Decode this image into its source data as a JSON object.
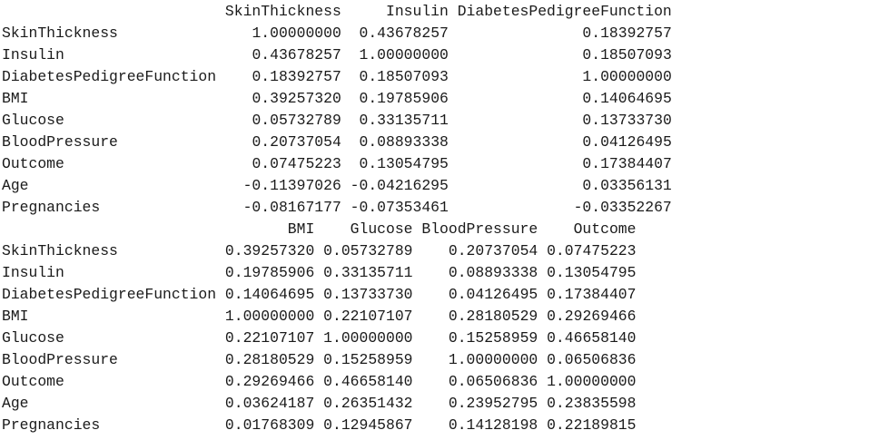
{
  "console": {
    "blocks": [
      {
        "columns": [
          "SkinThickness",
          "Insulin",
          "DiabetesPedigreeFunction"
        ],
        "rows": [
          {
            "label": "SkinThickness",
            "values": [
              "1.00000000",
              "0.43678257",
              "0.18392757"
            ]
          },
          {
            "label": "Insulin",
            "values": [
              "0.43678257",
              "1.00000000",
              "0.18507093"
            ]
          },
          {
            "label": "DiabetesPedigreeFunction",
            "values": [
              "0.18392757",
              "0.18507093",
              "1.00000000"
            ]
          },
          {
            "label": "BMI",
            "values": [
              "0.39257320",
              "0.19785906",
              "0.14064695"
            ]
          },
          {
            "label": "Glucose",
            "values": [
              "0.05732789",
              "0.33135711",
              "0.13733730"
            ]
          },
          {
            "label": "BloodPressure",
            "values": [
              "0.20737054",
              "0.08893338",
              "0.04126495"
            ]
          },
          {
            "label": "Outcome",
            "values": [
              "0.07475223",
              "0.13054795",
              "0.17384407"
            ]
          },
          {
            "label": "Age",
            "values": [
              "-0.11397026",
              "-0.04216295",
              "0.03356131"
            ]
          },
          {
            "label": "Pregnancies",
            "values": [
              "-0.08167177",
              "-0.07353461",
              "-0.03352267"
            ]
          }
        ]
      },
      {
        "columns": [
          "BMI",
          "Glucose",
          "BloodPressure",
          "Outcome"
        ],
        "rows": [
          {
            "label": "SkinThickness",
            "values": [
              "0.39257320",
              "0.05732789",
              "0.20737054",
              "0.07475223"
            ]
          },
          {
            "label": "Insulin",
            "values": [
              "0.19785906",
              "0.33135711",
              "0.08893338",
              "0.13054795"
            ]
          },
          {
            "label": "DiabetesPedigreeFunction",
            "values": [
              "0.14064695",
              "0.13733730",
              "0.04126495",
              "0.17384407"
            ]
          },
          {
            "label": "BMI",
            "values": [
              "1.00000000",
              "0.22107107",
              "0.28180529",
              "0.29269466"
            ]
          },
          {
            "label": "Glucose",
            "values": [
              "0.22107107",
              "1.00000000",
              "0.15258959",
              "0.46658140"
            ]
          },
          {
            "label": "BloodPressure",
            "values": [
              "0.28180529",
              "0.15258959",
              "1.00000000",
              "0.06506836"
            ]
          },
          {
            "label": "Outcome",
            "values": [
              "0.29269466",
              "0.46658140",
              "0.06506836",
              "1.00000000"
            ]
          },
          {
            "label": "Age",
            "values": [
              "0.03624187",
              "0.26351432",
              "0.23952795",
              "0.23835598"
            ]
          },
          {
            "label": "Pregnancies",
            "values": [
              "0.01768309",
              "0.12945867",
              "0.14128198",
              "0.22189815"
            ]
          }
        ]
      }
    ]
  }
}
